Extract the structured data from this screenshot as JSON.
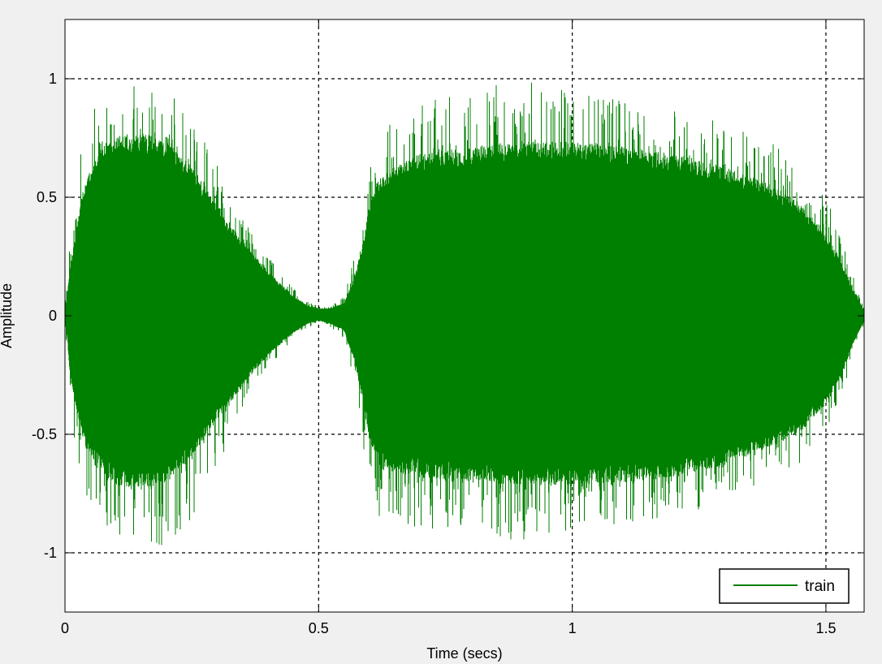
{
  "colors": {
    "background": "#f0f0f0",
    "axes_background": "#ffffff",
    "series": "#008000",
    "grid": "#000000"
  },
  "chart_data": {
    "type": "line",
    "title": "",
    "xlabel": "Time (secs)",
    "ylabel": "Amplitude",
    "xlim": [
      0,
      1.5753
    ],
    "ylim": [
      -1.25,
      1.25
    ],
    "xticks": [
      0,
      0.5,
      1,
      1.5
    ],
    "xtick_labels": [
      "0",
      "0.5",
      "1",
      "1.5"
    ],
    "yticks": [
      -1,
      -0.5,
      0,
      0.5,
      1
    ],
    "ytick_labels": [
      "-1",
      "-0.5",
      "0",
      "0.5",
      "1"
    ],
    "grid": true,
    "grid_style": "dashed",
    "legend_position": "bottom-right",
    "series": [
      {
        "name": "train",
        "color": "#008000",
        "envelope": {
          "t": [
            0,
            0.005,
            0.01,
            0.02,
            0.03,
            0.05,
            0.08,
            0.1,
            0.15,
            0.2,
            0.25,
            0.3,
            0.35,
            0.4,
            0.45,
            0.48,
            0.5,
            0.52,
            0.55,
            0.57,
            0.59,
            0.6,
            0.62,
            0.65,
            0.7,
            0.8,
            0.9,
            1.0,
            1.1,
            1.2,
            1.3,
            1.4,
            1.45,
            1.5,
            1.53,
            1.55,
            1.5753
          ],
          "upper": [
            0.02,
            0.1,
            0.2,
            0.32,
            0.45,
            0.6,
            0.7,
            0.72,
            0.74,
            0.7,
            0.6,
            0.45,
            0.3,
            0.18,
            0.08,
            0.04,
            0.03,
            0.03,
            0.05,
            0.15,
            0.32,
            0.45,
            0.55,
            0.6,
            0.65,
            0.68,
            0.7,
            0.7,
            0.68,
            0.65,
            0.6,
            0.52,
            0.45,
            0.32,
            0.22,
            0.12,
            0.02
          ],
          "lower": [
            -0.02,
            -0.1,
            -0.25,
            -0.35,
            -0.47,
            -0.58,
            -0.65,
            -0.68,
            -0.7,
            -0.67,
            -0.57,
            -0.42,
            -0.28,
            -0.16,
            -0.07,
            -0.03,
            -0.02,
            -0.03,
            -0.06,
            -0.18,
            -0.38,
            -0.5,
            -0.6,
            -0.63,
            -0.65,
            -0.67,
            -0.68,
            -0.68,
            -0.67,
            -0.65,
            -0.6,
            -0.52,
            -0.47,
            -0.35,
            -0.25,
            -0.13,
            -0.02
          ],
          "upper_peak": [
            0.05,
            0.2,
            0.35,
            0.55,
            0.7,
            0.85,
            0.95,
            1.0,
            1.0,
            0.98,
            0.85,
            0.65,
            0.42,
            0.25,
            0.12,
            0.06,
            0.04,
            0.04,
            0.08,
            0.25,
            0.5,
            0.65,
            0.78,
            0.85,
            0.9,
            0.95,
            1.0,
            0.96,
            0.92,
            0.88,
            0.82,
            0.72,
            0.62,
            0.5,
            0.35,
            0.2,
            0.03
          ],
          "lower_peak": [
            -0.05,
            -0.22,
            -0.4,
            -0.55,
            -0.7,
            -0.82,
            -0.9,
            -0.93,
            -0.95,
            -1.0,
            -0.85,
            -0.65,
            -0.4,
            -0.22,
            -0.1,
            -0.05,
            -0.03,
            -0.04,
            -0.1,
            -0.3,
            -0.6,
            -0.75,
            -0.85,
            -0.88,
            -0.9,
            -0.92,
            -0.95,
            -0.9,
            -0.88,
            -0.85,
            -0.8,
            -0.7,
            -0.62,
            -0.5,
            -0.35,
            -0.2,
            -0.03
          ]
        }
      }
    ]
  }
}
